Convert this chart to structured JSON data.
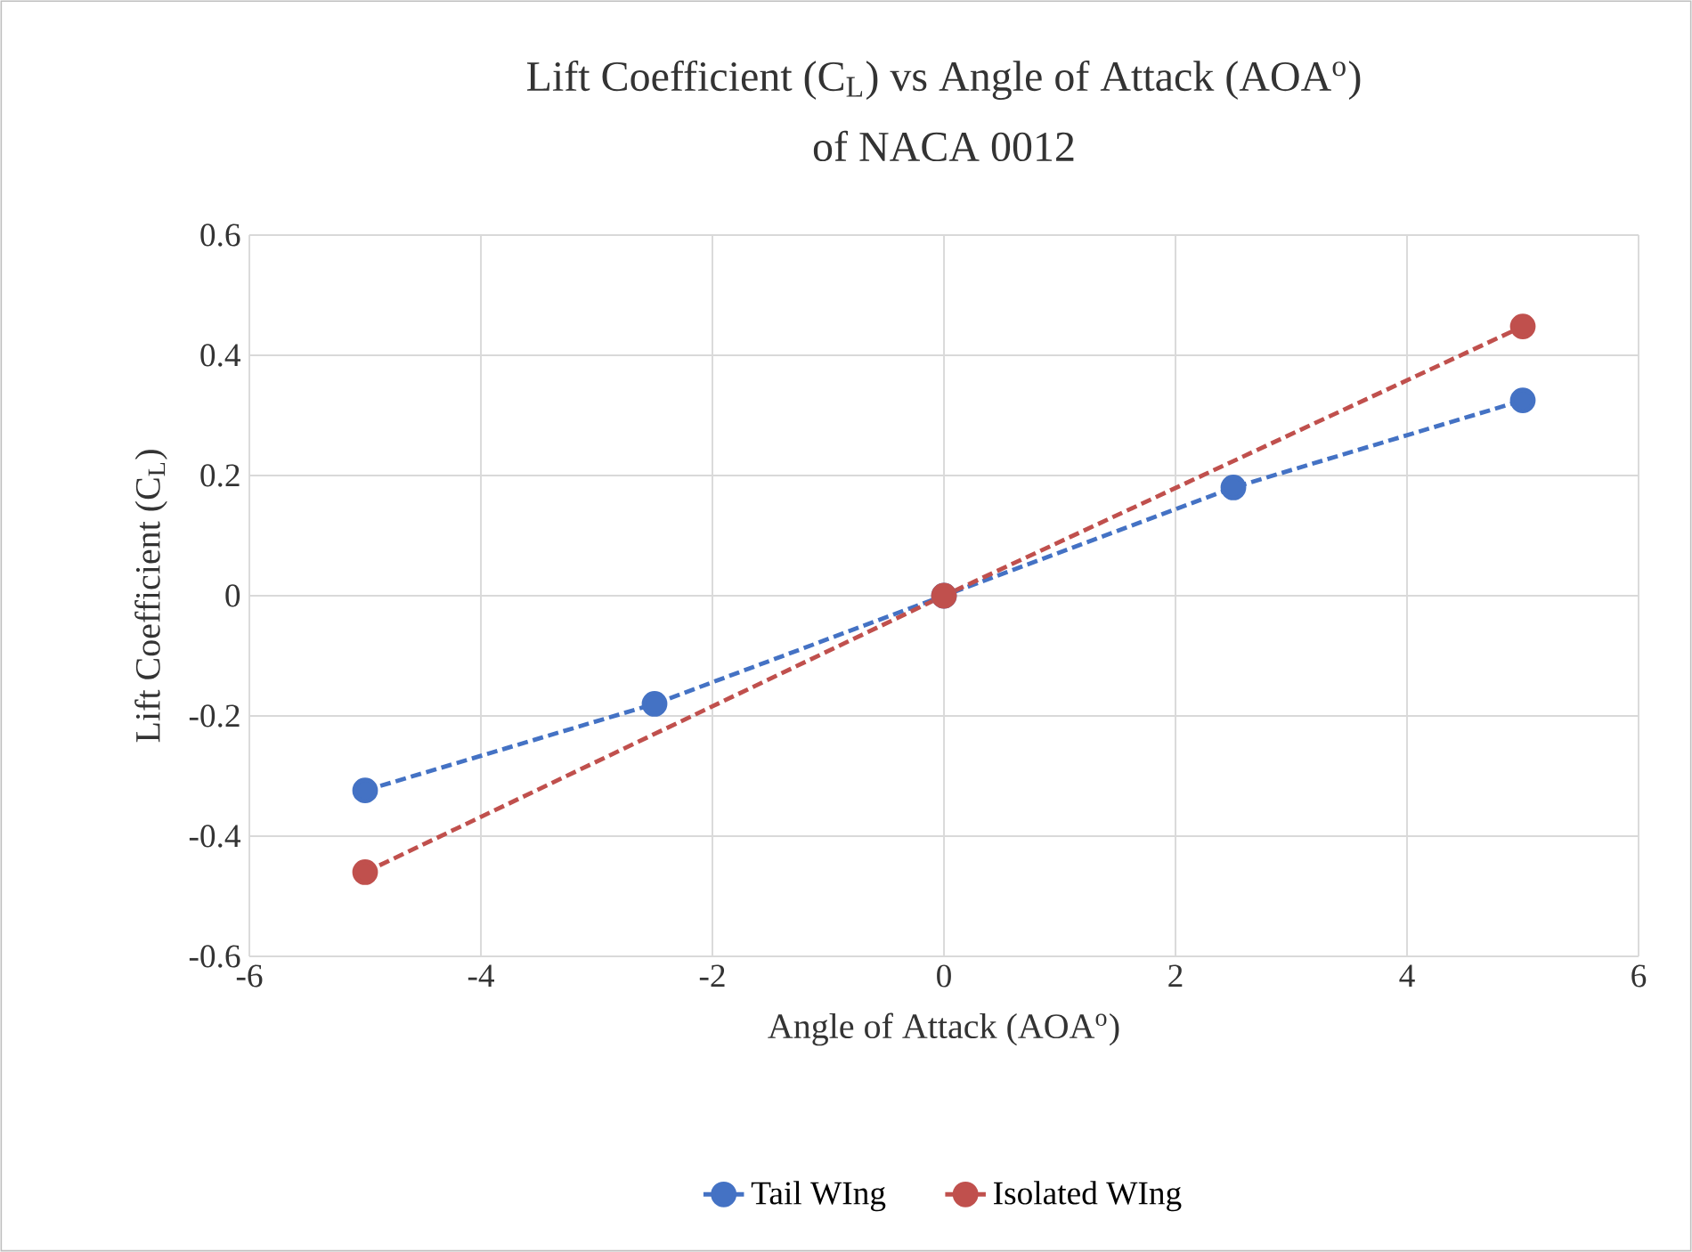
{
  "chart_data": {
    "type": "line",
    "title": "Lift Coefficient (C$_{L}$) vs Angle of Attack (AOA$^{o}$)",
    "subtitle": "of NACA 0012",
    "xlabel": "Angle of Attack (AOA$^{o}$)",
    "ylabel": "Lift Coefficient (C$_{L}$)",
    "series": [
      {
        "name": "Tail WIng",
        "color": "#4472c4",
        "x": [
          -5,
          -2.5,
          0,
          2.5,
          5
        ],
        "values": [
          -0.324,
          -0.18,
          0,
          0.18,
          0.325
        ]
      },
      {
        "name": "Isolated WIng",
        "color": "#c0504d",
        "x": [
          -5,
          0,
          5
        ],
        "values": [
          -0.46,
          0,
          0.448
        ]
      }
    ],
    "xlim": [
      -6,
      6
    ],
    "xticks": [
      -6,
      -4,
      -2,
      0,
      2,
      4,
      6
    ],
    "ylim": [
      -0.6,
      0.6
    ],
    "yticks": [
      -0.6,
      -0.4,
      -0.2,
      0,
      0.2,
      0.4,
      0.6
    ],
    "grid": true,
    "legend": "bottom",
    "marker": "circle",
    "line_style": "dashed"
  }
}
